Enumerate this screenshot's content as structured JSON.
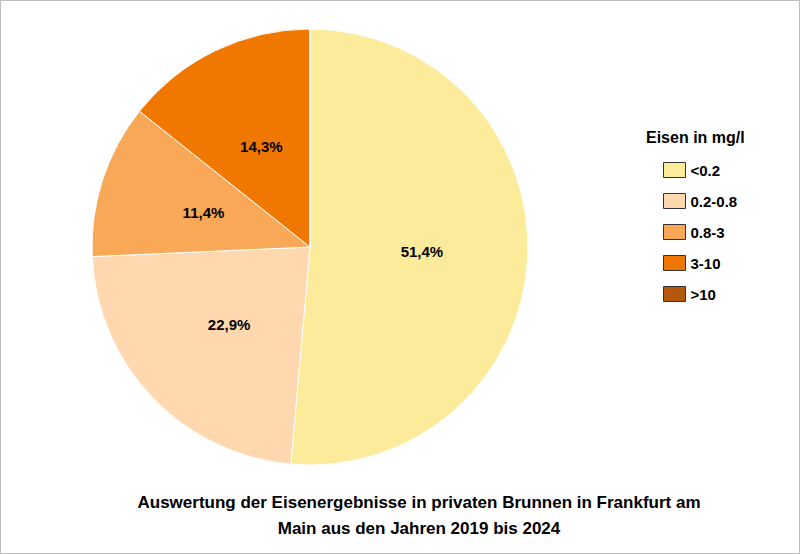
{
  "chart_data": {
    "type": "pie",
    "title": "Auswertung der Eisenergebnisse in privaten Brunnen in Frankfurt am\nMain aus den Jahren 2019 bis 2024",
    "legend_title": "Eisen in mg/l",
    "categories": [
      "<0.2",
      "0.2-0.8",
      "0.8-3",
      "3-10",
      ">10"
    ],
    "values": [
      51.4,
      22.9,
      11.4,
      14.3,
      0
    ],
    "value_labels": [
      "51,4%",
      "22,9%",
      "11,4%",
      "14,3%",
      null
    ],
    "colors": [
      "#fbeb9b",
      "#ffd8b0",
      "#f9a857",
      "#f07800",
      "#b4580c"
    ],
    "data_labels": true,
    "legend": "right"
  }
}
